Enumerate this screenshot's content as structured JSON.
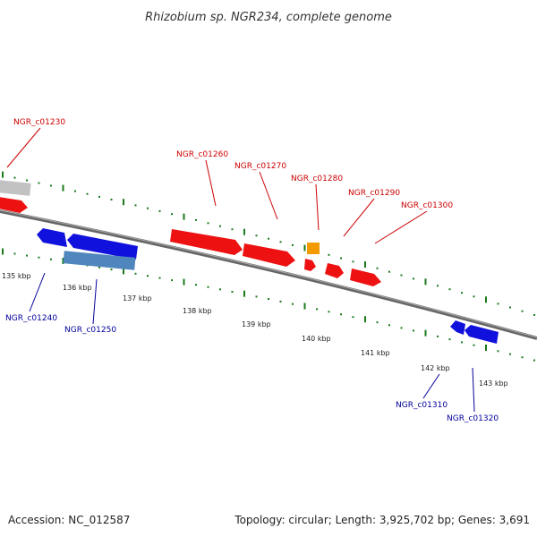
{
  "title": "Rhizobium sp. NGR234, complete genome",
  "footer": {
    "accession": "Accession: NC_012587",
    "summary": "Topology: circular; Length: 3,925,702 bp; Genes: 3,691"
  },
  "colors": {
    "forward_gene": "#ee0000",
    "reverse_gene": "#0000dd",
    "label_forward": "#cc0000",
    "label_reverse": "#000099",
    "backbone": "#777777",
    "tick": "#1a7a1a",
    "gray_feature": "#c0c0c0",
    "steelblue_feature": "#4a80b8",
    "orange_feature": "#f29a00"
  },
  "scale": {
    "ticks": [
      {
        "label": "135 kbp"
      },
      {
        "label": "136 kbp"
      },
      {
        "label": "137 kbp"
      },
      {
        "label": "138 kbp"
      },
      {
        "label": "139 kbp"
      },
      {
        "label": "140 kbp"
      },
      {
        "label": "141 kbp"
      },
      {
        "label": "142 kbp"
      },
      {
        "label": "143 kbp"
      }
    ]
  },
  "genes": {
    "forward": [
      {
        "label": "NGR_c01230"
      },
      {
        "label": "NGR_c01260"
      },
      {
        "label": "NGR_c01270"
      },
      {
        "label": "NGR_c01280"
      },
      {
        "label": "NGR_c01290"
      },
      {
        "label": "NGR_c01300"
      }
    ],
    "reverse": [
      {
        "label": "NGR_c01240"
      },
      {
        "label": "NGR_c01250"
      },
      {
        "label": "NGR_c01310"
      },
      {
        "label": "NGR_c01320"
      }
    ]
  }
}
